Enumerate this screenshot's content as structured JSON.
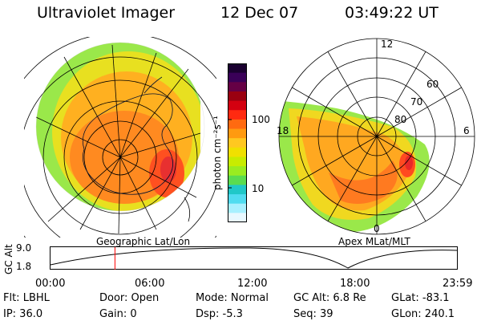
{
  "header": {
    "title": "Ultraviolet Imager",
    "date": "12 Dec 07",
    "time": "03:49:22 UT"
  },
  "colorbar": {
    "unit_label": "photon cm⁻²s⁻¹",
    "tick_high": "100",
    "tick_low": "10",
    "colors": [
      "#1a0030",
      "#3a0058",
      "#650045",
      "#9a0010",
      "#d40010",
      "#ff2a10",
      "#ff6a10",
      "#ff9a10",
      "#ffc820",
      "#f0e000",
      "#c8ec00",
      "#9aec20",
      "#5adc50",
      "#20c8c8",
      "#50dcf0",
      "#a8f0ff",
      "#e8f8ff"
    ]
  },
  "maps": {
    "geographic_caption": "Geographic Lat/Lon",
    "apex_caption": "Apex MLat/MLT",
    "mlt_labels": [
      "12",
      "18",
      "6",
      "0"
    ],
    "mlat_labels": [
      "60",
      "70",
      "80"
    ]
  },
  "timeline": {
    "y_axis_label": "GC Alt",
    "y_max": "9.0",
    "y_min": "1.8",
    "x_ticks": [
      "00:00",
      "06:00",
      "12:00",
      "18:00",
      "23:59"
    ],
    "current_hour": 3.82
  },
  "footer": {
    "filter": "Flt: LBHL",
    "door": "Door: Open",
    "mode": "Mode: Normal",
    "gc_alt": "GC Alt: 6.8 Re",
    "glat": "GLat: -83.1",
    "ip": "IP: 36.0",
    "gain": "Gain:  0",
    "dsp": "Dsp:   -5.3",
    "seq": "Seq: 39",
    "glon": "GLon: 240.1"
  }
}
